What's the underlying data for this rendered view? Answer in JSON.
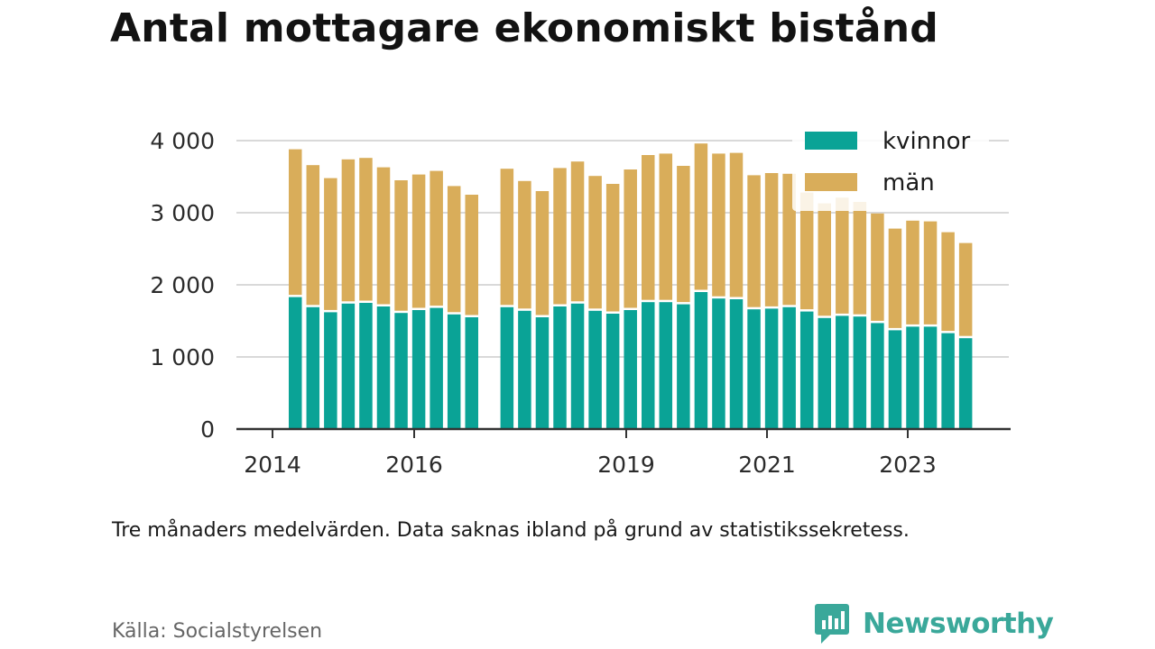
{
  "title": "Antal mottagare ekonomiskt bistånd",
  "note": "Tre månaders medelvärden. Data saknas ibland på grund av statistikssekretess.",
  "source": "Källa: Socialstyrelsen",
  "brand": {
    "name": "Newsworthy",
    "icon": "newsworthy-logo-icon",
    "color": "#3aa89a"
  },
  "colors": {
    "kvinnor": "#0aa396",
    "man": "#d9ad5a",
    "grid": "#d9d9d9",
    "axis": "#333333"
  },
  "chart_data": {
    "type": "bar",
    "stacked": true,
    "ylim": [
      0,
      4000
    ],
    "y_ticks": [
      0,
      1000,
      2000,
      3000,
      4000
    ],
    "y_tick_labels": [
      "0",
      "1 000",
      "2 000",
      "3 000",
      "4 000"
    ],
    "x_ticks": [
      "2014",
      "2016",
      "2019",
      "2021",
      "2023"
    ],
    "legend_position": "top-right",
    "grid": true,
    "series": [
      {
        "name": "kvinnor",
        "color": "#0aa396",
        "values": [
          1830,
          1690,
          1620,
          1740,
          1750,
          1700,
          1610,
          1650,
          1680,
          1590,
          1550,
          null,
          1690,
          1640,
          1550,
          1700,
          1740,
          1640,
          1600,
          1650,
          1760,
          1760,
          1730,
          1900,
          1810,
          1800,
          1660,
          1670,
          1690,
          1630,
          1540,
          1570,
          1560,
          1470,
          1370,
          1420,
          1420,
          1330,
          1260
        ]
      },
      {
        "name": "män",
        "color": "#d9ad5a",
        "values": [
          2050,
          1970,
          1860,
          2000,
          2010,
          1930,
          1840,
          1880,
          1900,
          1780,
          1700,
          null,
          1920,
          1800,
          1750,
          1920,
          1970,
          1870,
          1800,
          1950,
          2040,
          2060,
          1920,
          2060,
          2010,
          2030,
          1860,
          1880,
          1850,
          1650,
          1590,
          1640,
          1590,
          1520,
          1410,
          1470,
          1460,
          1400,
          1320
        ]
      }
    ]
  }
}
